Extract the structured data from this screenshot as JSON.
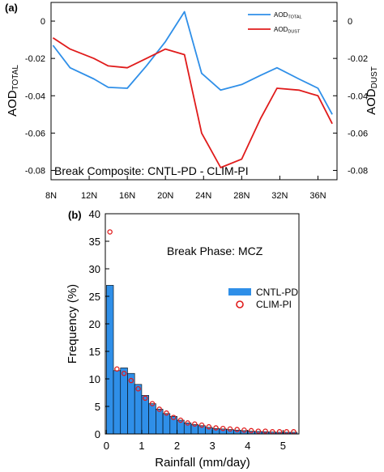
{
  "colors": {
    "total": "#2f8fe8",
    "dust": "#e01b1b",
    "bar": "#2f8fe8",
    "axis": "#000000"
  },
  "chart_data": [
    {
      "panel_label": "(a)",
      "type": "line",
      "annotation": "Break Composite: CNTL-PD - CLIM-PI",
      "ylabel_left": {
        "main": "AOD",
        "sub": "TOTAL"
      },
      "ylabel_right": {
        "main": "AOD",
        "sub": "DUST"
      },
      "xlim": [
        8,
        38
      ],
      "ylim": [
        -0.085,
        0.01
      ],
      "x_ticks": [
        8,
        12,
        16,
        20,
        24,
        28,
        32,
        36
      ],
      "x_tick_labels": [
        "8N",
        "12N",
        "16N",
        "20N",
        "24N",
        "28N",
        "32N",
        "36N"
      ],
      "y_ticks": [
        0,
        -0.02,
        -0.04,
        -0.06,
        -0.08
      ],
      "y_tick_labels": [
        "0",
        "-0.02",
        "-0.04",
        "-0.06",
        "-0.08"
      ],
      "legend_position": "top-right",
      "grid": false,
      "series": [
        {
          "key": "total",
          "legend": {
            "main": "AOD",
            "sub": "TOTAL"
          },
          "x": [
            8.2,
            10,
            12.5,
            14,
            16,
            18,
            20,
            22,
            23.8,
            25.8,
            28,
            30,
            31.7,
            34,
            36,
            37.5
          ],
          "y": [
            -0.013,
            -0.025,
            -0.031,
            -0.0355,
            -0.036,
            -0.024,
            -0.011,
            0.005,
            -0.028,
            -0.037,
            -0.034,
            -0.029,
            -0.025,
            -0.031,
            -0.036,
            -0.05
          ]
        },
        {
          "key": "dust",
          "legend": {
            "main": "AOD",
            "sub": "DUST"
          },
          "x": [
            8.2,
            10,
            12.5,
            14,
            16,
            18,
            20,
            22,
            23.8,
            25.8,
            28,
            30,
            31.7,
            34,
            36,
            37.5
          ],
          "y": [
            -0.009,
            -0.015,
            -0.02,
            -0.024,
            -0.025,
            -0.02,
            -0.015,
            -0.018,
            -0.06,
            -0.0785,
            -0.074,
            -0.052,
            -0.036,
            -0.037,
            -0.04,
            -0.055
          ]
        }
      ]
    },
    {
      "panel_label": "(b)",
      "type": "bar",
      "annotation": "Break Phase: MCZ",
      "xlabel": "Rainfall (mm/day)",
      "ylabel": "Frequency (%)",
      "xlim": [
        -0.03,
        5.45
      ],
      "ylim": [
        0,
        40
      ],
      "x_ticks": [
        0,
        1,
        2,
        3,
        4,
        5
      ],
      "y_ticks": [
        0,
        5,
        10,
        15,
        20,
        25,
        30,
        35,
        40
      ],
      "bin_width": 0.2,
      "legend_position": "right",
      "grid": false,
      "series": [
        {
          "name": "CNTL-PD",
          "key": "bars",
          "bin_starts": [
            0,
            0.2,
            0.4,
            0.6,
            0.8,
            1.0,
            1.2,
            1.4,
            1.6,
            1.8,
            2.0,
            2.2,
            2.4,
            2.6,
            2.8,
            3.0,
            3.2,
            3.4,
            3.6,
            3.8,
            4.0,
            4.2,
            4.4,
            4.6,
            4.8,
            5.0,
            5.2
          ],
          "values": [
            27,
            11.5,
            12,
            11,
            9,
            7,
            5.5,
            4.5,
            3.7,
            3.2,
            2.5,
            2.0,
            1.7,
            1.5,
            1.2,
            1.0,
            0.9,
            0.8,
            0.7,
            0.6,
            0.5,
            0.45,
            0.4,
            0.35,
            0.3,
            0.3,
            0.3
          ]
        },
        {
          "name": "CLIM-PI",
          "key": "circles",
          "x": [
            0.1,
            0.3,
            0.5,
            0.7,
            0.9,
            1.1,
            1.3,
            1.5,
            1.7,
            1.9,
            2.1,
            2.3,
            2.5,
            2.7,
            2.9,
            3.1,
            3.3,
            3.5,
            3.7,
            3.9,
            4.1,
            4.3,
            4.5,
            4.7,
            4.9,
            5.1,
            5.3
          ],
          "y": [
            36.7,
            11.8,
            11.0,
            9.7,
            8.2,
            6.5,
            5.5,
            4.5,
            3.8,
            3.0,
            2.5,
            2.0,
            1.8,
            1.6,
            1.3,
            1.1,
            1.0,
            0.9,
            0.8,
            0.7,
            0.6,
            0.5,
            0.5,
            0.4,
            0.4,
            0.4,
            0.4
          ]
        }
      ]
    }
  ]
}
